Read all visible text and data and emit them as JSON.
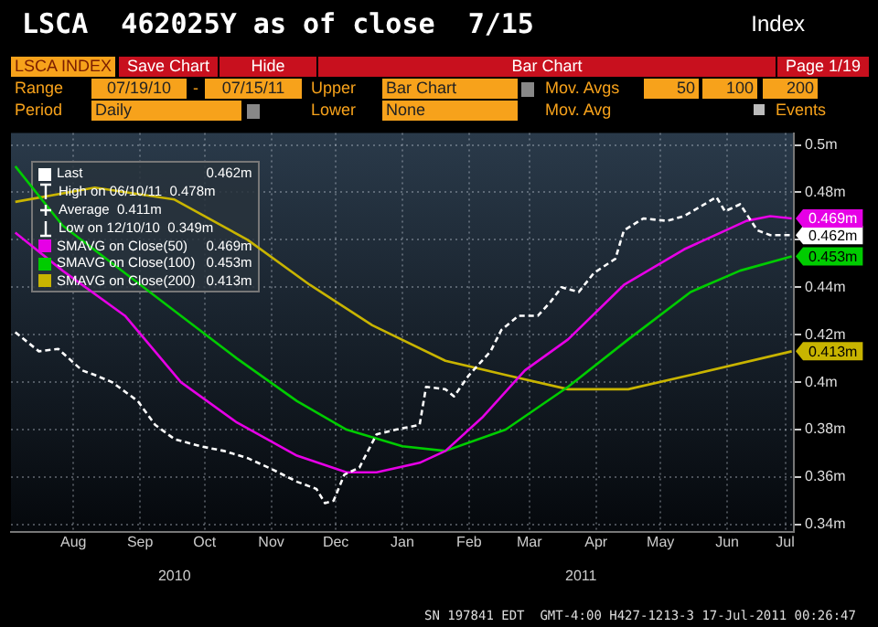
{
  "chart_data": {
    "type": "line",
    "title": "LSCA  462025Y as of close  7/15",
    "subtitle": "Index",
    "annotations": [
      "LSCA INDEX",
      "Save Chart",
      "Hide",
      "Bar Chart",
      "Page 1/19",
      "Range",
      "07/19/10",
      "-",
      "07/15/11",
      "Upper",
      "Bar Chart",
      "Mov. Avgs",
      "50",
      "100",
      "200",
      "Period",
      "Daily",
      "Lower",
      "None",
      "Mov. Avg",
      "Events",
      "High on 06/10/11  0.478m",
      "Average  0.411m",
      "Low on 12/10/10  0.349m",
      "SN 197841 EDT  GMT-4:00 H427-1213-3 17-Jul-2011 00:26:47"
    ],
    "series": [
      {
        "name": "Last",
        "color": "#ffffff",
        "line_style": "dashed",
        "x": [
          "2010-07-19",
          "2010-07-30",
          "2010-08-08",
          "2010-08-19",
          "2010-08-25",
          "2010-09-02",
          "2010-09-14",
          "2010-09-22",
          "2010-10-01",
          "2010-10-13",
          "2010-10-24",
          "2010-11-04",
          "2010-11-16",
          "2010-11-27",
          "2010-12-06",
          "2010-12-10",
          "2010-12-14",
          "2010-12-19",
          "2010-12-26",
          "2011-01-03",
          "2011-01-12",
          "2011-01-23",
          "2011-01-26",
          "2011-02-04",
          "2011-02-08",
          "2011-02-15",
          "2011-02-25",
          "2011-03-02",
          "2011-03-10",
          "2011-03-19",
          "2011-03-25",
          "2011-03-30",
          "2011-04-07",
          "2011-04-14",
          "2011-04-24",
          "2011-04-28",
          "2011-05-07",
          "2011-05-18",
          "2011-05-26",
          "2011-06-10",
          "2011-06-14",
          "2011-06-21",
          "2011-06-29",
          "2011-07-05",
          "2011-07-15"
        ],
        "values": [
          0.421,
          0.413,
          0.414,
          0.405,
          0.403,
          0.4,
          0.392,
          0.382,
          0.376,
          0.373,
          0.371,
          0.368,
          0.363,
          0.358,
          0.355,
          0.349,
          0.35,
          0.361,
          0.364,
          0.378,
          0.38,
          0.382,
          0.398,
          0.397,
          0.394,
          0.403,
          0.413,
          0.422,
          0.428,
          0.428,
          0.434,
          0.44,
          0.438,
          0.446,
          0.452,
          0.464,
          0.469,
          0.468,
          0.47,
          0.478,
          0.472,
          0.475,
          0.464,
          0.462,
          0.462
        ],
        "value_labels": [
          null,
          null,
          null,
          null,
          null,
          null,
          null,
          null,
          null,
          null,
          null,
          null,
          null,
          null,
          null,
          null,
          null,
          null,
          null,
          null,
          null,
          null,
          null,
          null,
          null,
          null,
          null,
          null,
          null,
          null,
          null,
          null,
          null,
          null,
          null,
          null,
          null,
          null,
          null,
          null,
          null,
          null,
          null,
          null,
          "0.462m"
        ]
      },
      {
        "name": "SMAVG on Close(50)",
        "color": "#e600e6",
        "x": [
          "2010-07-19",
          "2010-08-10",
          "2010-09-08",
          "2010-10-04",
          "2010-10-30",
          "2010-11-27",
          "2010-12-20",
          "2011-01-03",
          "2011-01-23",
          "2011-02-04",
          "2011-02-21",
          "2011-03-13",
          "2011-04-02",
          "2011-04-28",
          "2011-05-26",
          "2011-06-24",
          "2011-07-05",
          "2011-07-15"
        ],
        "values": [
          0.463,
          0.447,
          0.428,
          0.4,
          0.383,
          0.369,
          0.362,
          0.362,
          0.366,
          0.371,
          0.385,
          0.405,
          0.418,
          0.441,
          0.456,
          0.468,
          0.47,
          0.469
        ],
        "value_labels": [
          null,
          null,
          null,
          null,
          null,
          null,
          null,
          null,
          null,
          null,
          null,
          null,
          null,
          null,
          null,
          null,
          null,
          "0.469m"
        ]
      },
      {
        "name": "SMAVG on Close(100)",
        "color": "#00cc00",
        "x": [
          "2010-07-19",
          "2010-08-10",
          "2010-09-08",
          "2010-10-04",
          "2010-10-30",
          "2010-11-27",
          "2010-12-20",
          "2011-01-15",
          "2011-02-04",
          "2011-03-04",
          "2011-04-02",
          "2011-04-30",
          "2011-05-29",
          "2011-06-21",
          "2011-07-15"
        ],
        "values": [
          0.491,
          0.466,
          0.446,
          0.428,
          0.41,
          0.392,
          0.38,
          0.373,
          0.371,
          0.38,
          0.398,
          0.418,
          0.438,
          0.447,
          0.453
        ],
        "value_labels": [
          null,
          null,
          null,
          null,
          null,
          null,
          null,
          null,
          null,
          null,
          null,
          null,
          null,
          null,
          "0.453m"
        ]
      },
      {
        "name": "SMAVG on Close(200)",
        "color": "#c8b400",
        "x": [
          "2010-07-19",
          "2010-08-25",
          "2010-10-01",
          "2010-11-04",
          "2010-12-03",
          "2011-01-01",
          "2011-02-04",
          "2011-03-04",
          "2011-04-02",
          "2011-04-30",
          "2011-05-29",
          "2011-07-15"
        ],
        "values": [
          0.476,
          0.482,
          0.477,
          0.46,
          0.441,
          0.424,
          0.409,
          0.403,
          0.397,
          0.397,
          0.403,
          0.413
        ],
        "value_labels": [
          null,
          null,
          null,
          null,
          null,
          null,
          null,
          null,
          null,
          null,
          null,
          "0.413m"
        ]
      }
    ],
    "xlim": [
      "2010-07-17",
      "2011-07-16"
    ],
    "xticks": [
      {
        "value": "2010-08-15",
        "label": "Aug"
      },
      {
        "value": "2010-09-15",
        "label": "Sep"
      },
      {
        "value": "2010-10-15",
        "label": "Oct"
      },
      {
        "value": "2010-11-15",
        "label": "Nov"
      },
      {
        "value": "2010-12-15",
        "label": "Dec"
      },
      {
        "value": "2011-01-15",
        "label": "Jan"
      },
      {
        "value": "2011-02-15",
        "label": "Feb"
      },
      {
        "value": "2011-03-15",
        "label": "Mar"
      },
      {
        "value": "2011-04-15",
        "label": "Apr"
      },
      {
        "value": "2011-05-15",
        "label": "May"
      },
      {
        "value": "2011-06-15",
        "label": "Jun"
      },
      {
        "value": "2011-07-12",
        "label": "Jul"
      }
    ],
    "x2lim": [
      "2010-07-17",
      "2011-07-16"
    ],
    "x2ticks": [
      {
        "value": "2010-10-01",
        "label": "2010"
      },
      {
        "value": "2011-04-08",
        "label": "2011"
      }
    ],
    "ylim": [
      0.337,
      0.505
    ],
    "yticks": [
      {
        "value": 0.34,
        "label": "0.34m"
      },
      {
        "value": 0.36,
        "label": "0.36m"
      },
      {
        "value": 0.38,
        "label": "0.38m"
      },
      {
        "value": 0.4,
        "label": "0.4m"
      },
      {
        "value": 0.42,
        "label": "0.42m"
      },
      {
        "value": 0.44,
        "label": "0.44m"
      },
      {
        "value": 0.46,
        "label": null
      },
      {
        "value": 0.48,
        "label": "0.48m"
      },
      {
        "value": 0.5,
        "label": "0.5m"
      }
    ],
    "grid": true,
    "legend": "top left",
    "marker": "none"
  }
}
